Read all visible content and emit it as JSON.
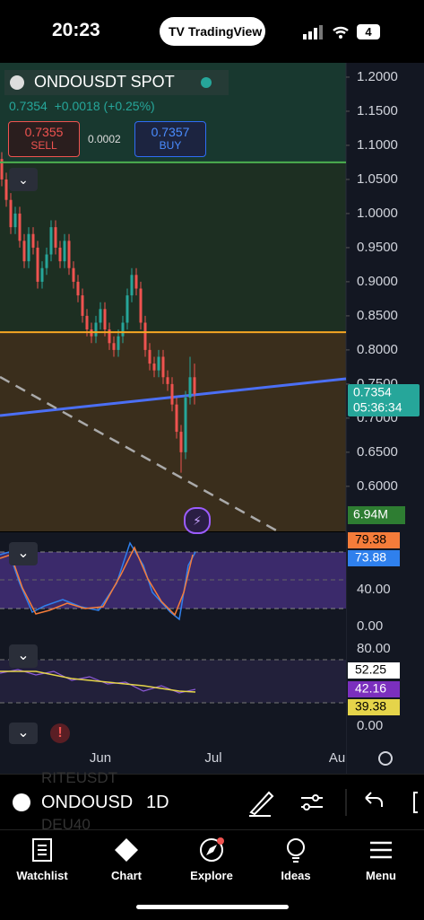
{
  "status_bar": {
    "time": "20:23",
    "app": "TradingView",
    "battery": "4"
  },
  "header": {
    "symbol": "ONDOUSDT SPOT",
    "price": "0.7354",
    "change": "+0.0018 (+0.25%)",
    "sell_price": "0.7355",
    "sell": "SELL",
    "spread": "0.0002",
    "buy_price": "0.7357",
    "buy": "BUY"
  },
  "chart_data": {
    "type": "candlestick",
    "up_color": "#26a69a",
    "down_color": "#ef5350",
    "candles": [
      [
        1.08,
        1.09,
        1.04,
        1.05
      ],
      [
        1.05,
        1.06,
        1.01,
        1.02
      ],
      [
        1.02,
        1.03,
        0.97,
        0.98
      ],
      [
        0.98,
        1.01,
        0.97,
        1.0
      ],
      [
        1.0,
        1.01,
        0.95,
        0.96
      ],
      [
        0.96,
        0.97,
        0.92,
        0.93
      ],
      [
        0.93,
        0.98,
        0.92,
        0.97
      ],
      [
        0.97,
        0.98,
        0.94,
        0.95
      ],
      [
        0.95,
        0.96,
        0.89,
        0.9
      ],
      [
        0.9,
        0.93,
        0.89,
        0.92
      ],
      [
        0.92,
        0.95,
        0.91,
        0.94
      ],
      [
        0.94,
        0.99,
        0.93,
        0.98
      ],
      [
        0.98,
        0.99,
        0.94,
        0.95
      ],
      [
        0.95,
        0.96,
        0.92,
        0.93
      ],
      [
        0.93,
        0.97,
        0.92,
        0.96
      ],
      [
        0.96,
        0.97,
        0.91,
        0.92
      ],
      [
        0.92,
        0.93,
        0.89,
        0.9
      ],
      [
        0.9,
        0.91,
        0.87,
        0.88
      ],
      [
        0.88,
        0.89,
        0.84,
        0.85
      ],
      [
        0.85,
        0.86,
        0.82,
        0.83
      ],
      [
        0.83,
        0.84,
        0.81,
        0.82
      ],
      [
        0.82,
        0.85,
        0.81,
        0.84
      ],
      [
        0.84,
        0.87,
        0.83,
        0.86
      ],
      [
        0.86,
        0.87,
        0.82,
        0.83
      ],
      [
        0.83,
        0.84,
        0.8,
        0.81
      ],
      [
        0.81,
        0.82,
        0.79,
        0.8
      ],
      [
        0.8,
        0.83,
        0.79,
        0.82
      ],
      [
        0.82,
        0.85,
        0.81,
        0.84
      ],
      [
        0.84,
        0.89,
        0.83,
        0.88
      ],
      [
        0.88,
        0.92,
        0.87,
        0.91
      ],
      [
        0.91,
        0.92,
        0.88,
        0.89
      ],
      [
        0.89,
        0.9,
        0.83,
        0.84
      ],
      [
        0.84,
        0.85,
        0.79,
        0.8
      ],
      [
        0.8,
        0.81,
        0.77,
        0.78
      ],
      [
        0.78,
        0.79,
        0.76,
        0.77
      ],
      [
        0.77,
        0.8,
        0.76,
        0.79
      ],
      [
        0.79,
        0.8,
        0.75,
        0.76
      ],
      [
        0.76,
        0.77,
        0.74,
        0.75
      ],
      [
        0.75,
        0.76,
        0.71,
        0.72
      ],
      [
        0.72,
        0.73,
        0.67,
        0.68
      ],
      [
        0.68,
        0.69,
        0.62,
        0.65
      ],
      [
        0.65,
        0.74,
        0.64,
        0.73
      ],
      [
        0.73,
        0.79,
        0.72,
        0.76
      ],
      [
        0.76,
        0.78,
        0.72,
        0.7354
      ]
    ],
    "ylim": [
      0.534,
      1.221
    ],
    "yticks": [
      {
        "value": 1.2,
        "label": "1.2000"
      },
      {
        "value": 1.15,
        "label": "1.1500"
      },
      {
        "value": 1.1,
        "label": "1.1000"
      },
      {
        "value": 1.05,
        "label": "1.0500"
      },
      {
        "value": 1.0,
        "label": "1.0000"
      },
      {
        "value": 0.95,
        "label": "0.9500"
      },
      {
        "value": 0.9,
        "label": "0.9000"
      },
      {
        "value": 0.85,
        "label": "0.8500"
      },
      {
        "value": 0.8,
        "label": "0.8000"
      },
      {
        "value": 0.75,
        "label": "0.7500"
      },
      {
        "value": 0.7,
        "label": "0.7000"
      },
      {
        "value": 0.65,
        "label": "0.6500"
      },
      {
        "value": 0.6,
        "label": "0.6000"
      }
    ],
    "levels": [
      {
        "value": 1.075,
        "color": "#4caf50"
      },
      {
        "value": 0.826,
        "color": "#f5a623"
      }
    ],
    "current_price": {
      "value": 0.7354,
      "label": "0.7354",
      "countdown": "05:36:34"
    },
    "volume_label": "6.94M",
    "x_labels": [
      "Jun",
      "Jul",
      "Au"
    ]
  },
  "indicators": {
    "stoch": {
      "k": "79.38",
      "d": "73.88",
      "ticks": [
        "40.00",
        "0.00"
      ]
    },
    "rsi": {
      "ticks": [
        "80.00",
        "0.00"
      ],
      "values": [
        "52.25",
        "42.16",
        "39.38"
      ]
    }
  },
  "toolbar": {
    "symbol": "ONDOUSD",
    "interval": "1D",
    "ghost": [
      "RITEUSDT",
      "DEU40"
    ]
  },
  "nav": [
    "Watchlist",
    "Chart",
    "Explore",
    "Ideas",
    "Menu"
  ]
}
